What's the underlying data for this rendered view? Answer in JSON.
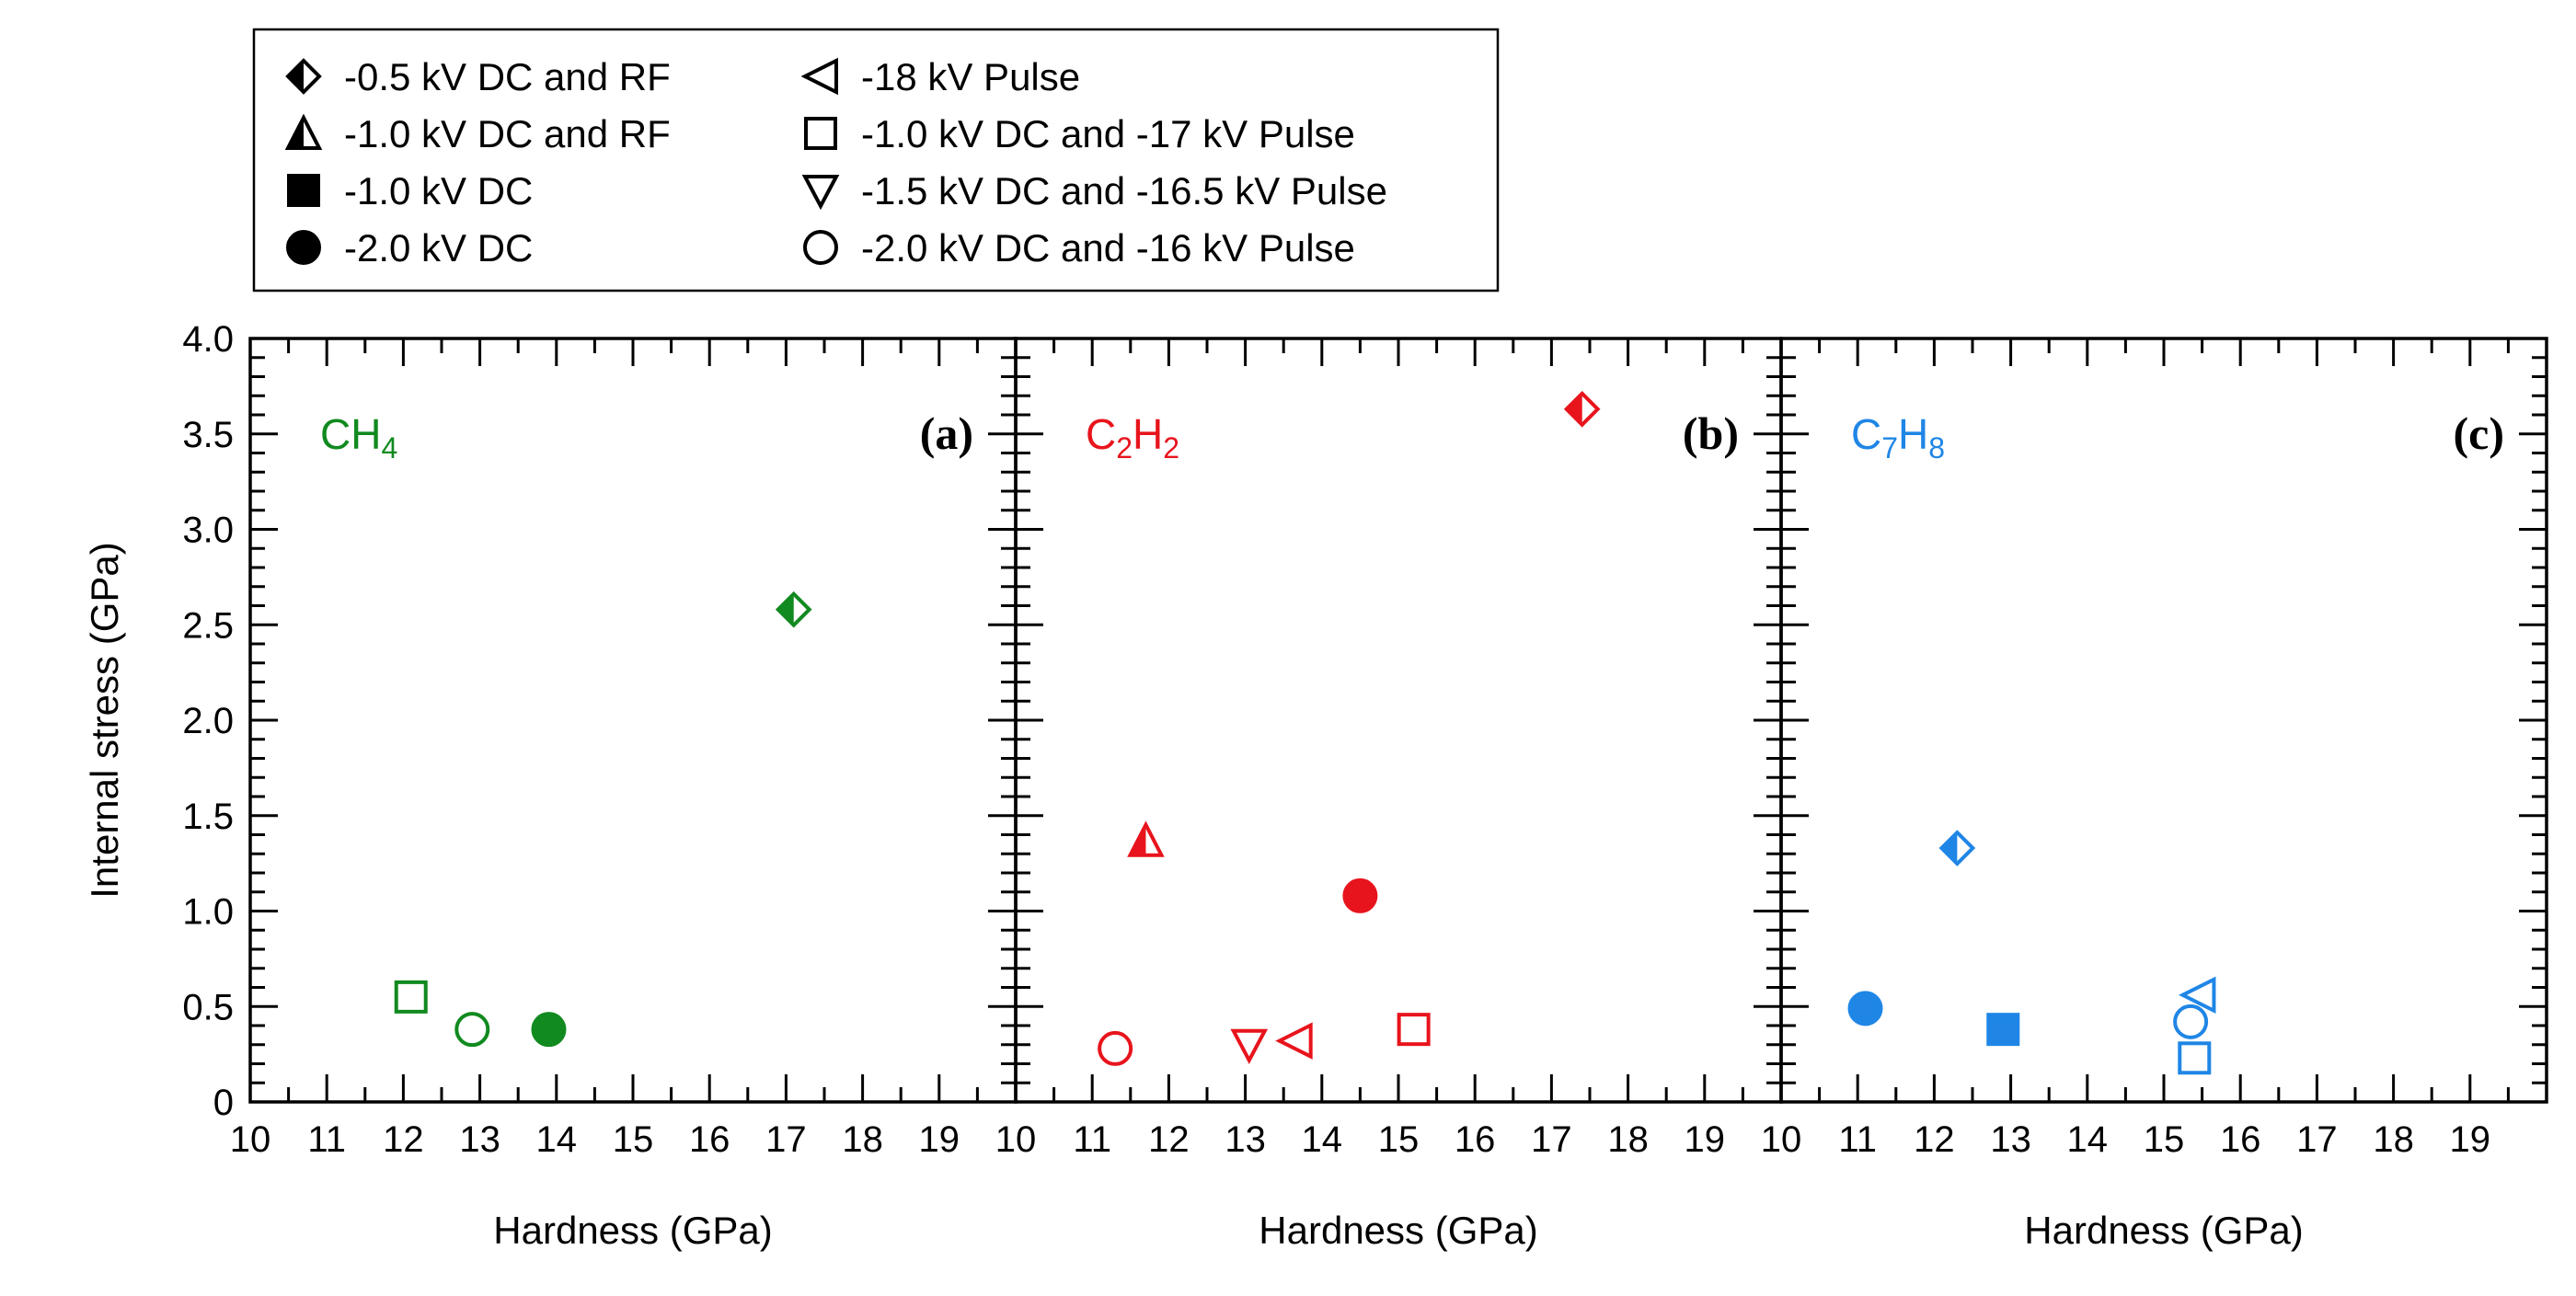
{
  "chart_data": {
    "type": "scatter",
    "ylabel": "Internal stress (GPa)",
    "xlabel": "Hardness (GPa)",
    "xlim": [
      10,
      20
    ],
    "ylim": [
      0,
      4.0
    ],
    "x_ticks": [
      "10",
      "11",
      "12",
      "13",
      "14",
      "15",
      "16",
      "17",
      "18",
      "19"
    ],
    "y_ticks": [
      "0",
      "0.5",
      "1.0",
      "1.5",
      "2.0",
      "2.5",
      "3.0",
      "3.5",
      "4.0"
    ],
    "legend": {
      "position": "top-left",
      "entries": [
        {
          "key": "half_diamond",
          "label": "-0.5 kV DC and RF"
        },
        {
          "key": "half_triangle_up",
          "label": "-1.0 kV DC and RF"
        },
        {
          "key": "filled_square",
          "label": "-1.0 kV DC"
        },
        {
          "key": "filled_circle",
          "label": "-2.0 kV DC"
        },
        {
          "key": "open_triangle_left",
          "label": "-18 kV Pulse"
        },
        {
          "key": "open_square",
          "label": "-1.0 kV DC and -17 kV Pulse"
        },
        {
          "key": "open_triangle_down",
          "label": "-1.5 kV DC and -16.5 kV Pulse"
        },
        {
          "key": "open_circle",
          "label": "-2.0 kV DC and -16 kV Pulse"
        }
      ]
    },
    "panels": [
      {
        "id": "a",
        "panel_label": "(a)",
        "gas_label": {
          "base": "CH",
          "sub": "4",
          "mid": "",
          "sub2": ""
        },
        "color": "#118a1f",
        "points": [
          {
            "series": "half_diamond",
            "x": 17.1,
            "y": 2.58
          },
          {
            "series": "open_square",
            "x": 12.1,
            "y": 0.55
          },
          {
            "series": "open_circle",
            "x": 12.9,
            "y": 0.38
          },
          {
            "series": "filled_circle",
            "x": 13.9,
            "y": 0.38
          }
        ]
      },
      {
        "id": "b",
        "panel_label": "(b)",
        "gas_label": {
          "base": "C",
          "sub": "2",
          "mid": "H",
          "sub2": "2"
        },
        "color": "#e8141c",
        "points": [
          {
            "series": "half_diamond",
            "x": 17.4,
            "y": 3.63
          },
          {
            "series": "half_triangle_up",
            "x": 11.7,
            "y": 1.37
          },
          {
            "series": "filled_circle",
            "x": 14.5,
            "y": 1.08
          },
          {
            "series": "open_circle",
            "x": 11.3,
            "y": 0.28
          },
          {
            "series": "open_triangle_down",
            "x": 13.05,
            "y": 0.3
          },
          {
            "series": "open_triangle_left",
            "x": 13.65,
            "y": 0.32
          },
          {
            "series": "open_square",
            "x": 15.2,
            "y": 0.38
          }
        ]
      },
      {
        "id": "c",
        "panel_label": "(c)",
        "gas_label": {
          "base": "C",
          "sub": "7",
          "mid": "H",
          "sub2": "8"
        },
        "color": "#1f86e6",
        "points": [
          {
            "series": "half_diamond",
            "x": 12.3,
            "y": 1.33
          },
          {
            "series": "filled_circle",
            "x": 11.1,
            "y": 0.49
          },
          {
            "series": "filled_square",
            "x": 12.9,
            "y": 0.38
          },
          {
            "series": "open_triangle_left",
            "x": 15.45,
            "y": 0.56
          },
          {
            "series": "open_circle",
            "x": 15.35,
            "y": 0.42
          },
          {
            "series": "open_square",
            "x": 15.4,
            "y": 0.23
          }
        ]
      }
    ]
  }
}
